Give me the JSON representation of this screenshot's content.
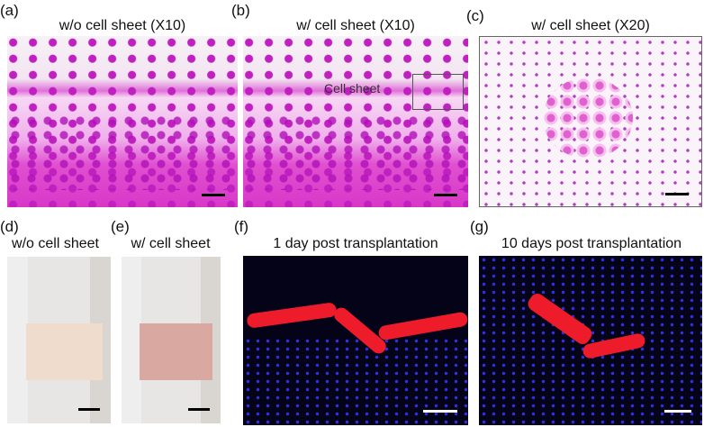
{
  "panels": [
    {
      "label": "(a)",
      "title": "w/o cell sheet (X10)"
    },
    {
      "label": "(b)",
      "title": "w/ cell sheet (X10)",
      "annotation": "Cell sheet"
    },
    {
      "label": "(c)",
      "title": "w/ cell sheet (X20)"
    },
    {
      "label": "(d)",
      "title": "w/o cell sheet"
    },
    {
      "label": "(e)",
      "title": "w/ cell sheet"
    },
    {
      "label": "(f)",
      "title": "1 day post transplantation"
    },
    {
      "label": "(g)",
      "title": "10 days post transplantation"
    }
  ],
  "colors": {
    "he_stain": "#e050d0",
    "arrow_blue": "#1a2ee0",
    "fluor_red": "#ee1c2a",
    "fluor_blue": "#3030e0"
  }
}
